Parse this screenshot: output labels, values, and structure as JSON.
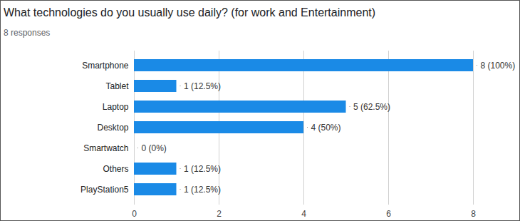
{
  "chart_data": {
    "type": "bar",
    "orientation": "horizontal",
    "title": "What technologies do you usually use daily? (for work and Entertainment)",
    "subtitle": "8 responses",
    "categories": [
      "Smartphone",
      "Tablet",
      "Laptop",
      "Desktop",
      "Smartwatch",
      "Others",
      "PlayStation5"
    ],
    "values": [
      8,
      1,
      5,
      4,
      0,
      1,
      1
    ],
    "value_labels": [
      "8 (100%)",
      "1 (12.5%)",
      "5 (62.5%)",
      "4 (50%)",
      "0 (0%)",
      "1 (12.5%)",
      "1 (12.5%)"
    ],
    "data_labels": true,
    "color": "#1a8ae6",
    "xlim": [
      0,
      8
    ],
    "xticks": [
      0,
      2,
      4,
      6,
      8
    ],
    "grid": true
  }
}
